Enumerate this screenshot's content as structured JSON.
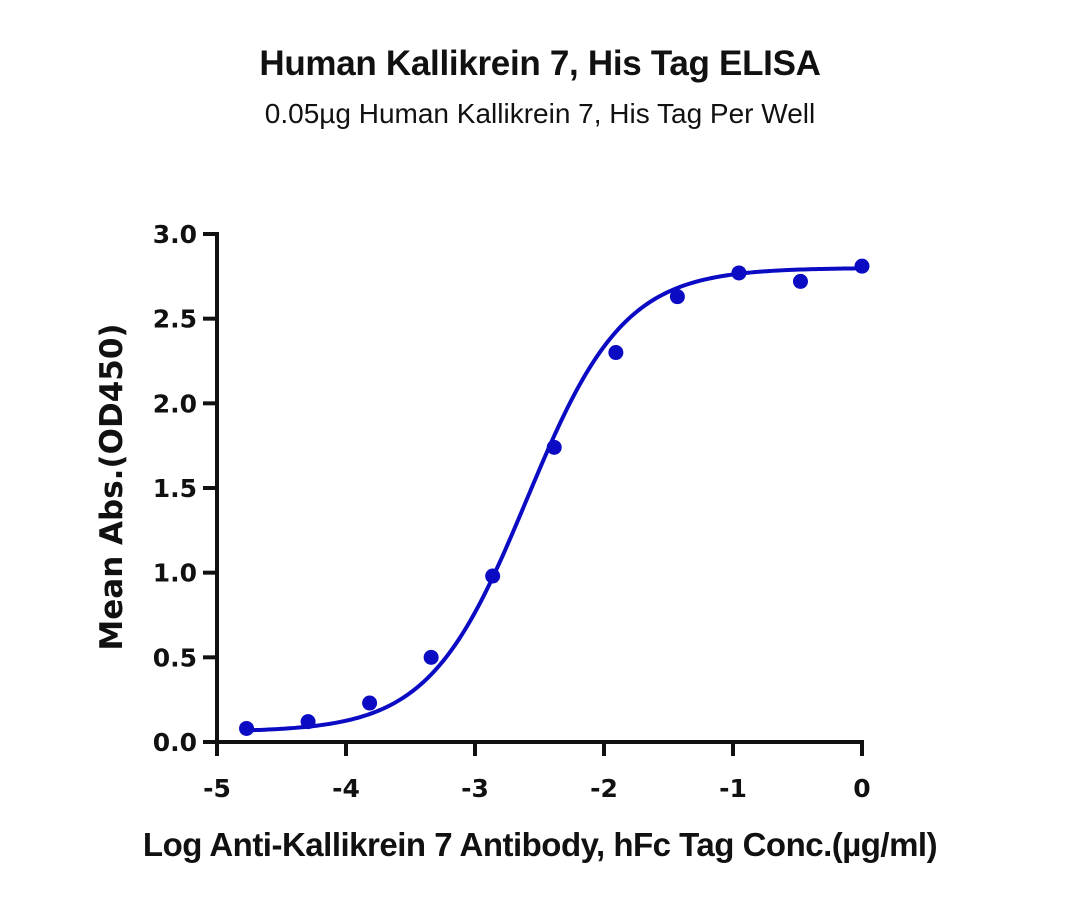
{
  "chart_data": {
    "type": "scatter",
    "title": "Human Kallikrein 7, His Tag ELISA",
    "subtitle": "0.05µg Human Kallikrein 7, His Tag Per Well",
    "xlabel": "Log Anti-Kallikrein 7 Antibody, hFc Tag Conc.(µg/ml)",
    "ylabel": "Mean Abs.(OD450)",
    "xlim": [
      -5,
      0
    ],
    "ylim": [
      0,
      3.0
    ],
    "x_ticks": [
      "-5",
      "-4",
      "-3",
      "-2",
      "-1",
      "0"
    ],
    "y_ticks": [
      "0.0",
      "0.5",
      "1.0",
      "1.5",
      "2.0",
      "2.5",
      "3.0"
    ],
    "grid": false,
    "legend": null,
    "series": [
      {
        "name": "Mean Abs. (OD450)",
        "color": "#0b0bc4",
        "marker": "circle",
        "x": [
          -4.771,
          -4.294,
          -3.817,
          -3.34,
          -2.863,
          -2.386,
          -1.908,
          -1.431,
          -0.954,
          -0.477,
          0.0
        ],
        "values": [
          0.08,
          0.12,
          0.23,
          0.5,
          0.98,
          1.74,
          2.3,
          2.63,
          2.77,
          2.72,
          2.81
        ]
      }
    ],
    "fit_curve": {
      "model": "4PL",
      "bottom": 0.06,
      "top": 2.8,
      "log_ec50": -2.6,
      "hill_slope": 1.15,
      "color": "#0b0bc4"
    }
  }
}
